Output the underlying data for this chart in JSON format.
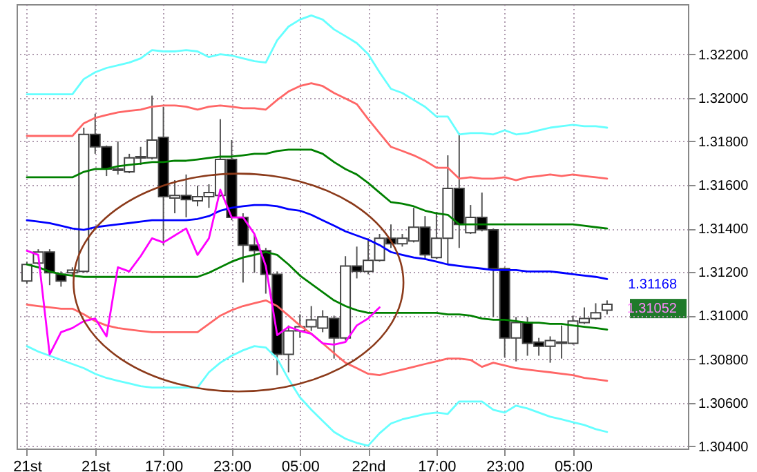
{
  "chart_data": {
    "type": "candlestick",
    "categories": [
      "21st",
      null,
      null,
      null,
      null,
      null,
      "21st",
      null,
      null,
      null,
      null,
      null,
      "17:00",
      null,
      null,
      null,
      null,
      null,
      "23:00",
      null,
      null,
      null,
      null,
      null,
      "05:00",
      null,
      null,
      null,
      null,
      null,
      "22nd",
      null,
      null,
      null,
      null,
      null,
      "17:00",
      null,
      null,
      null,
      null,
      null,
      "23:00",
      null,
      null,
      null,
      null,
      null,
      "05:00",
      null,
      null,
      null
    ],
    "ohlc": [
      [
        1.31159,
        1.31248,
        1.31146,
        1.31235
      ],
      [
        1.31241,
        1.31305,
        1.31235,
        1.31292
      ],
      [
        1.31292,
        1.31305,
        1.3114,
        1.31197
      ],
      [
        1.3119,
        1.31203,
        1.31133,
        1.31159
      ],
      [
        1.31197,
        1.31222,
        1.31184,
        1.31209
      ],
      [
        1.31203,
        1.31863,
        1.31197,
        1.31832
      ],
      [
        1.31832,
        1.31927,
        1.31743,
        1.31775
      ],
      [
        1.31775,
        1.31781,
        1.31641,
        1.31673
      ],
      [
        1.31673,
        1.318,
        1.31648,
        1.31667
      ],
      [
        1.3166,
        1.31743,
        1.31654,
        1.31724
      ],
      [
        1.31724,
        1.31775,
        1.31692,
        1.3173
      ],
      [
        1.31724,
        1.3201,
        1.31717,
        1.31806
      ],
      [
        1.31819,
        1.31959,
        1.31324,
        1.31546
      ],
      [
        1.3154,
        1.31622,
        1.3147,
        1.31552
      ],
      [
        1.31552,
        1.31648,
        1.31451,
        1.31533
      ],
      [
        1.31527,
        1.31597,
        1.31502,
        1.31546
      ],
      [
        1.31546,
        1.31603,
        1.31495,
        1.31565
      ],
      [
        1.31552,
        1.31902,
        1.31546,
        1.31717
      ],
      [
        1.31717,
        1.31806,
        1.31438,
        1.31451
      ],
      [
        1.31451,
        1.3147,
        1.31152,
        1.31324
      ],
      [
        1.31324,
        1.31375,
        1.31197,
        1.31298
      ],
      [
        1.31298,
        1.31311,
        1.31101,
        1.3119
      ],
      [
        1.3119,
        1.31203,
        1.30727,
        1.30822
      ],
      [
        1.30822,
        1.30955,
        1.3074,
        1.3093
      ],
      [
        1.3093,
        1.31006,
        1.30898,
        1.30949
      ],
      [
        1.30949,
        1.31044,
        1.3093,
        1.30981
      ],
      [
        1.30943,
        1.31025,
        1.30924,
        1.30994
      ],
      [
        1.30987,
        1.31,
        1.30803,
        1.30898
      ],
      [
        1.30898,
        1.31273,
        1.30886,
        1.31228
      ],
      [
        1.31228,
        1.31317,
        1.31171,
        1.31203
      ],
      [
        1.31203,
        1.31355,
        1.3119,
        1.31254
      ],
      [
        1.31254,
        1.31375,
        1.31248,
        1.31355
      ],
      [
        1.31355,
        1.31419,
        1.31311,
        1.3133
      ],
      [
        1.3133,
        1.31375,
        1.31317,
        1.31355
      ],
      [
        1.31343,
        1.31495,
        1.31336,
        1.31406
      ],
      [
        1.31406,
        1.31457,
        1.3126,
        1.31279
      ],
      [
        1.31267,
        1.31476,
        1.3126,
        1.31355
      ],
      [
        1.31355,
        1.31736,
        1.31235,
        1.31584
      ],
      [
        1.31584,
        1.31838,
        1.31311,
        1.31419
      ],
      [
        1.31381,
        1.31508,
        1.31375,
        1.31451
      ],
      [
        1.31451,
        1.31565,
        1.31387,
        1.31394
      ],
      [
        1.31394,
        1.314,
        1.30994,
        1.31216
      ],
      [
        1.31216,
        1.31222,
        1.30809,
        1.30898
      ],
      [
        1.30898,
        1.30994,
        1.3079,
        1.30968
      ],
      [
        1.30968,
        1.30994,
        1.30816,
        1.30873
      ],
      [
        1.30879,
        1.30898,
        1.30816,
        1.3086
      ],
      [
        1.3086,
        1.30905,
        1.30784,
        1.30886
      ],
      [
        1.30879,
        1.30955,
        1.30803,
        1.30873
      ],
      [
        1.30873,
        1.31,
        1.30867,
        1.30975
      ],
      [
        1.30968,
        1.31038,
        1.30962,
        1.30987
      ],
      [
        1.30987,
        1.31057,
        1.30981,
        1.31013
      ],
      [
        1.31025,
        1.3107,
        1.31006,
        1.31052
      ]
    ],
    "series": [
      {
        "type": "line",
        "color": "#66ffff",
        "values": [
          1.32016,
          1.32016,
          1.32016,
          1.32016,
          1.32016,
          1.32086,
          1.32117,
          1.32137,
          1.32149,
          1.32162,
          1.32181,
          1.32219,
          1.32213,
          1.32213,
          1.32219,
          1.32213,
          1.32187,
          1.322,
          1.32194,
          1.32181,
          1.32168,
          1.32162,
          1.32264,
          1.32327,
          1.32359,
          1.32378,
          1.32359,
          1.32314,
          1.32283,
          1.32251,
          1.322,
          1.32117,
          1.32041,
          1.32022,
          1.3199,
          1.31959,
          1.31914,
          1.31914,
          1.31832,
          1.31838,
          1.31838,
          1.31832,
          1.31851,
          1.31832,
          1.31838,
          1.31851,
          1.31863,
          1.3187,
          1.31876,
          1.3187,
          1.3187,
          1.31863
        ]
      },
      {
        "type": "line",
        "color": "#ff6666",
        "values": [
          1.31825,
          1.31825,
          1.31825,
          1.31825,
          1.31825,
          1.31883,
          1.31908,
          1.31921,
          1.31933,
          1.3194,
          1.31946,
          1.31959,
          1.31965,
          1.31965,
          1.31959,
          1.31946,
          1.31959,
          1.31965,
          1.31959,
          1.31952,
          1.31952,
          1.31946,
          1.3199,
          1.32029,
          1.32054,
          1.32067,
          1.32054,
          1.32022,
          1.31997,
          1.31971,
          1.31902,
          1.31838,
          1.31775,
          1.31756,
          1.31736,
          1.31711,
          1.31679,
          1.31679,
          1.31629,
          1.31635,
          1.31629,
          1.31629,
          1.31635,
          1.31622,
          1.31635,
          1.31641,
          1.31648,
          1.31641,
          1.31648,
          1.31641,
          1.31635,
          1.31629
        ]
      },
      {
        "type": "line",
        "color": "#008000",
        "values": [
          1.31635,
          1.31635,
          1.31635,
          1.31635,
          1.31635,
          1.3166,
          1.31673,
          1.31673,
          1.31686,
          1.31692,
          1.31698,
          1.31705,
          1.31705,
          1.31711,
          1.31711,
          1.31717,
          1.31724,
          1.3173,
          1.3173,
          1.31736,
          1.31743,
          1.31743,
          1.31756,
          1.31762,
          1.31762,
          1.31762,
          1.31743,
          1.31705,
          1.31673,
          1.31648,
          1.31609,
          1.31565,
          1.31521,
          1.31514,
          1.31502,
          1.31482,
          1.3147,
          1.31463,
          1.31419,
          1.31419,
          1.31419,
          1.31419,
          1.31419,
          1.31419,
          1.31419,
          1.31419,
          1.31419,
          1.31419,
          1.31419,
          1.31413,
          1.31406,
          1.314
        ]
      },
      {
        "type": "line",
        "color": "#0000ff",
        "values": [
          1.31438,
          1.31432,
          1.31425,
          1.31413,
          1.314,
          1.31394,
          1.31406,
          1.31413,
          1.31419,
          1.31425,
          1.31432,
          1.31438,
          1.31438,
          1.31438,
          1.31438,
          1.31444,
          1.31457,
          1.31482,
          1.31495,
          1.31502,
          1.31508,
          1.31508,
          1.31502,
          1.31489,
          1.31482,
          1.31463,
          1.31438,
          1.31413,
          1.31387,
          1.31368,
          1.31349,
          1.31324,
          1.31292,
          1.31279,
          1.31267,
          1.3126,
          1.31248,
          1.31235,
          1.31228,
          1.31222,
          1.31216,
          1.31209,
          1.31209,
          1.31209,
          1.31203,
          1.31203,
          1.31203,
          1.31197,
          1.3119,
          1.31184,
          1.31178,
          1.31168
        ]
      },
      {
        "type": "line",
        "color": "#008000",
        "values": [
          1.31235,
          1.31222,
          1.31203,
          1.3119,
          1.31184,
          1.31178,
          1.31178,
          1.31178,
          1.31178,
          1.31178,
          1.31178,
          1.31178,
          1.31178,
          1.31178,
          1.31178,
          1.31178,
          1.31197,
          1.31222,
          1.31248,
          1.31267,
          1.31279,
          1.31292,
          1.31279,
          1.31235,
          1.31184,
          1.31146,
          1.31108,
          1.3107,
          1.31044,
          1.31025,
          1.31013,
          1.31013,
          1.31013,
          1.31013,
          1.31013,
          1.31013,
          1.31013,
          1.31006,
          1.31006,
          1.31,
          1.30987,
          1.30981,
          1.30981,
          1.30975,
          1.30968,
          1.30968,
          1.30962,
          1.30962,
          1.30955,
          1.30949,
          1.30943,
          1.30936
        ]
      },
      {
        "type": "line",
        "color": "#ff6666",
        "values": [
          1.31051,
          1.31044,
          1.31038,
          1.31032,
          1.31032,
          1.31006,
          1.30975,
          1.30955,
          1.30943,
          1.30936,
          1.3093,
          1.30924,
          1.30924,
          1.30924,
          1.30924,
          1.30924,
          1.30962,
          1.31,
          1.31025,
          1.31044,
          1.31057,
          1.3107,
          1.31044,
          1.31,
          1.30955,
          1.30917,
          1.30873,
          1.30828,
          1.30784,
          1.30759,
          1.30733,
          1.30727,
          1.3074,
          1.30752,
          1.30765,
          1.30778,
          1.3079,
          1.30803,
          1.30803,
          1.30797,
          1.30765,
          1.30784,
          1.30771,
          1.30759,
          1.30752,
          1.30746,
          1.3074,
          1.30733,
          1.30727,
          1.30714,
          1.30708,
          1.30701
        ]
      },
      {
        "type": "line",
        "color": "#66ffff",
        "values": [
          1.3086,
          1.30835,
          1.30816,
          1.30797,
          1.30778,
          1.30759,
          1.30733,
          1.30714,
          1.30701,
          1.30689,
          1.30676,
          1.3067,
          1.3067,
          1.3067,
          1.3067,
          1.3067,
          1.3074,
          1.30784,
          1.30816,
          1.30841,
          1.3086,
          1.30854,
          1.30803,
          1.30708,
          1.30625,
          1.30568,
          1.30517,
          1.30466,
          1.30435,
          1.30416,
          1.30403,
          1.3046,
          1.30505,
          1.30524,
          1.30536,
          1.30549,
          1.30555,
          1.30549,
          1.30606,
          1.30606,
          1.30606,
          1.30568,
          1.30555,
          1.30587,
          1.30574,
          1.30555,
          1.30536,
          1.30524,
          1.30511,
          1.30498,
          1.30479,
          1.30466
        ]
      },
      {
        "type": "line",
        "color": "#ff00ff",
        "values": [
          1.31298,
          1.31279,
          1.30822,
          1.30924,
          1.30943,
          1.30975,
          1.30987,
          1.30905,
          1.31222,
          1.31203,
          1.31273,
          1.31355,
          1.31336,
          1.31368,
          1.314,
          1.31279,
          1.31355,
          1.31578,
          1.31451,
          1.31451,
          1.31375,
          1.31228,
          1.30911,
          1.30949,
          1.3093,
          1.30917,
          1.30873,
          1.30867,
          1.30879,
          1.30955,
          1.30987,
          1.31038,
          null,
          null,
          null,
          null,
          null,
          null,
          null,
          null,
          null,
          null,
          null,
          null,
          null,
          null,
          null,
          null,
          null,
          null,
          null,
          null
        ]
      }
    ],
    "ylim": [
      1.3039,
      1.3243
    ],
    "yticks": [
      {
        "value": 1.304,
        "label": "1.30400"
      },
      {
        "value": 1.306,
        "label": "1.30600"
      },
      {
        "value": 1.308,
        "label": "1.30800"
      },
      {
        "value": 1.31,
        "label": "1.31000"
      },
      {
        "value": 1.312,
        "label": "1.31200"
      },
      {
        "value": 1.314,
        "label": "1.31400"
      },
      {
        "value": 1.316,
        "label": "1.31600"
      },
      {
        "value": 1.318,
        "label": "1.31800"
      },
      {
        "value": 1.32,
        "label": "1.32000"
      },
      {
        "value": 1.322,
        "label": "1.32200"
      }
    ],
    "grid": true,
    "annotations": [
      "1.31168",
      "1.31052"
    ]
  }
}
